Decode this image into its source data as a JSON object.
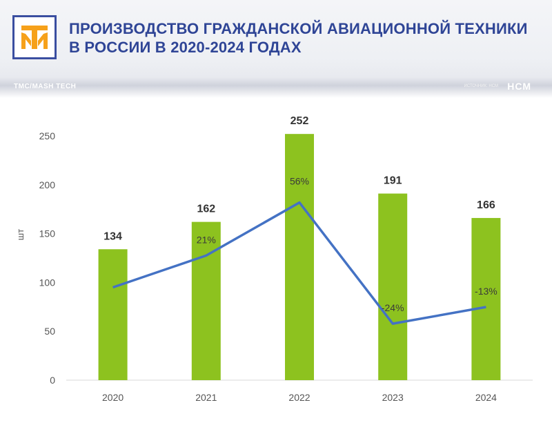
{
  "header": {
    "title_line1": "ПРОИЗВОДСТВО ГРАЖДАНСКОЙ АВИАЦИОННОЙ ТЕХНИКИ",
    "title_line2": "В РОССИИ В 2020-2024 ГОДАХ",
    "brand_left": "TMC/MASH TECH",
    "brand_right": "НСМ",
    "brand_small": "ИСТОЧНИК: НСМ"
  },
  "colors": {
    "bar": "#8dc21f",
    "line": "#4472c4",
    "title": "#2f4596",
    "logo_orange": "#f6a11a",
    "logo_blue": "#3a4ea0"
  },
  "chart_data": {
    "type": "bar",
    "title": "ПРОИЗВОДСТВО ГРАЖДАНСКОЙ АВИАЦИОННОЙ ТЕХНИКИ В РОССИИ В 2020-2024 ГОДАХ",
    "xlabel": "",
    "ylabel": "шт",
    "ylim": [
      0,
      250
    ],
    "yticks": [
      0,
      50,
      100,
      150,
      200,
      250
    ],
    "categories": [
      "2020",
      "2021",
      "2022",
      "2023",
      "2024"
    ],
    "values": [
      134,
      162,
      252,
      191,
      166
    ],
    "growth_line": {
      "type": "line",
      "labels": [
        "",
        "21%",
        "56%",
        "-24%",
        "-13%"
      ]
    }
  }
}
